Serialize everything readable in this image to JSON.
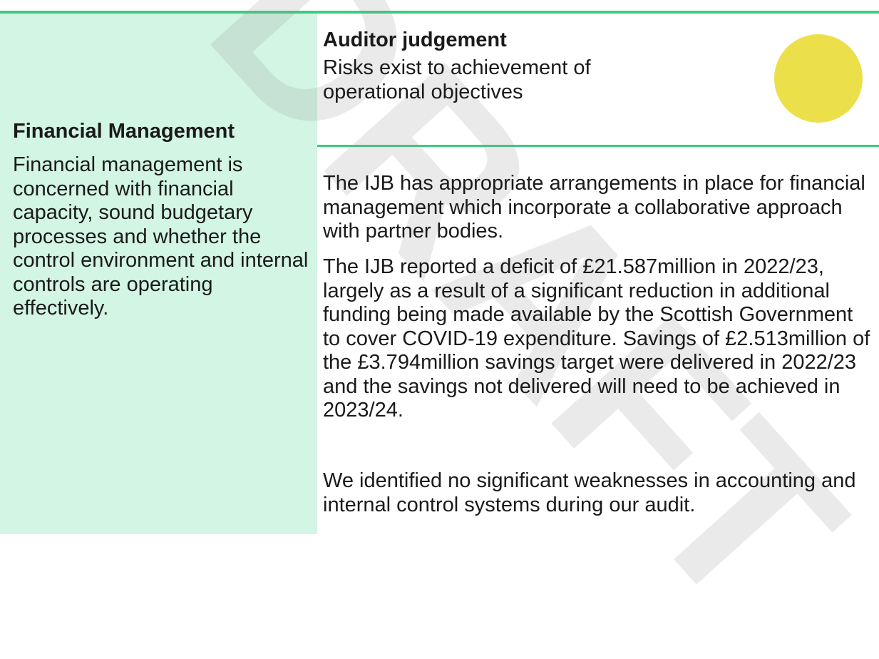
{
  "left": {
    "heading": "Financial Management",
    "text": "Financial management is concerned with financial capacity, sound budgetary processes and whether the control environment and internal controls are operating effectively."
  },
  "judgement": {
    "heading": "Auditor judgement",
    "text": "Risks exist to achievement of operational objectives"
  },
  "paragraphs": [
    "The IJB has appropriate arrangements in place for financial management which incorporate a collaborative approach with partner bodies.",
    "The IJB reported a deficit of £21.587million in 2022/23, largely as a result of a significant reduction in additional funding being made available by the Scottish Government to cover COVID-19 expenditure. Savings of £2.513million of the £3.794million savings target were delivered in 2022/23 and the savings not delivered will need to be achieved in 2023/24.",
    "We identified no significant weaknesses in accounting and internal control systems during our audit."
  ],
  "watermark": "DRAFT"
}
